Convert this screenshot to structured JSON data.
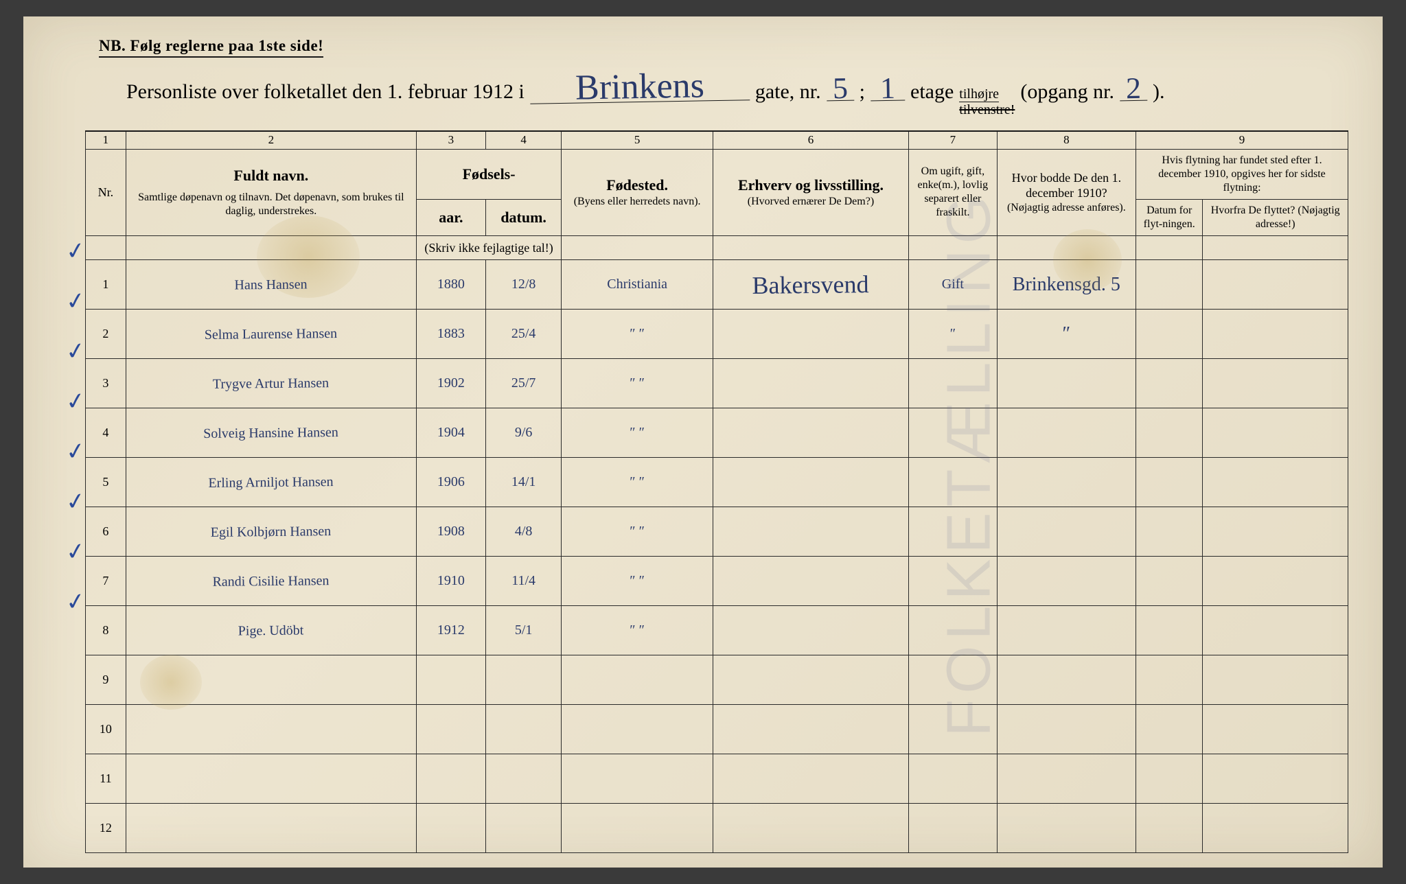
{
  "header": {
    "nb": "NB.  Følg reglerne paa 1ste side!",
    "title_prefix": "Personliste over folketallet den 1. februar 1912 i",
    "street": "Brinkens",
    "gate_label": "gate, nr.",
    "gate_nr": "5",
    "semicolon": ";",
    "etage_nr": "1",
    "etage_label": "etage",
    "tilhojre": "tilhøjre",
    "tilvenstre_struck": "tilvenstre!",
    "opgang_label": "(opgang nr.",
    "opgang_nr": "2",
    "close": ")."
  },
  "columns": {
    "c1": "1",
    "c2": "2",
    "c3": "3",
    "c4": "4",
    "c5": "5",
    "c6": "6",
    "c7": "7",
    "c8": "8",
    "c9": "9",
    "nr": "Nr.",
    "navn_bold": "Fuldt navn.",
    "navn_sub": "Samtlige døpenavn og tilnavn. Det døpenavn, som brukes til daglig, understrekes.",
    "fodsels": "Fødsels-",
    "aar": "aar.",
    "datum": "datum.",
    "skriv": "(Skriv ikke fejlagtige tal!)",
    "fodested": "Fødested.",
    "fodested_sub": "(Byens eller herredets navn).",
    "erhverv": "Erhverv og livsstilling.",
    "erhverv_sub": "(Hvorved ernærer De Dem?)",
    "omugift": "Om ugift, gift, enke(m.), lovlig separert eller fraskilt.",
    "hvorbodde": "Hvor bodde De den 1. december 1910?",
    "hvorbodde_sub": "(Nøjagtig adresse anføres).",
    "flytning": "Hvis flytning har fundet sted efter 1. december 1910, opgives her for sidste flytning:",
    "flyt_datum": "Datum for flyt-ningen.",
    "flyt_hvorfra": "Hvorfra De flyttet? (Nøjagtig adresse!)"
  },
  "rows": [
    {
      "nr": "1",
      "navn": "Hans Hansen",
      "aar": "1880",
      "datum": "12/8",
      "fodested": "Christiania",
      "erhverv": "Bakersvend",
      "status": "Gift",
      "bodde": "Brinkensgd. 5"
    },
    {
      "nr": "2",
      "navn": "Selma Laurense Hansen",
      "aar": "1883",
      "datum": "25/4",
      "fodested": "″   ″",
      "erhverv": "",
      "status": "″",
      "bodde": "″"
    },
    {
      "nr": "3",
      "navn": "Trygve Artur Hansen",
      "aar": "1902",
      "datum": "25/7",
      "fodested": "″   ″",
      "erhverv": "",
      "status": "",
      "bodde": ""
    },
    {
      "nr": "4",
      "navn": "Solveig Hansine Hansen",
      "aar": "1904",
      "datum": "9/6",
      "fodested": "″   ″",
      "erhverv": "",
      "status": "",
      "bodde": ""
    },
    {
      "nr": "5",
      "navn": "Erling Arniljot Hansen",
      "aar": "1906",
      "datum": "14/1",
      "fodested": "″   ″",
      "erhverv": "",
      "status": "",
      "bodde": ""
    },
    {
      "nr": "6",
      "navn": "Egil Kolbjørn Hansen",
      "aar": "1908",
      "datum": "4/8",
      "fodested": "″   ″",
      "erhverv": "",
      "status": "",
      "bodde": ""
    },
    {
      "nr": "7",
      "navn": "Randi Cisilie Hansen",
      "aar": "1910",
      "datum": "11/4",
      "fodested": "″   ″",
      "erhverv": "",
      "status": "",
      "bodde": ""
    },
    {
      "nr": "8",
      "navn": "Pige.   Udöbt",
      "aar": "1912",
      "datum": "5/1",
      "fodested": "″   ″",
      "erhverv": "",
      "status": "",
      "bodde": ""
    },
    {
      "nr": "9",
      "navn": "",
      "aar": "",
      "datum": "",
      "fodested": "",
      "erhverv": "",
      "status": "",
      "bodde": ""
    },
    {
      "nr": "10",
      "navn": "",
      "aar": "",
      "datum": "",
      "fodested": "",
      "erhverv": "",
      "status": "",
      "bodde": ""
    },
    {
      "nr": "11",
      "navn": "",
      "aar": "",
      "datum": "",
      "fodested": "",
      "erhverv": "",
      "status": "",
      "bodde": ""
    },
    {
      "nr": "12",
      "navn": "",
      "aar": "",
      "datum": "",
      "fodested": "",
      "erhverv": "",
      "status": "",
      "bodde": ""
    }
  ],
  "col_widths_pct": {
    "nr": 3.2,
    "navn": 23,
    "aar": 5.5,
    "datum": 6,
    "fodested": 12,
    "erhverv": 15.5,
    "status": 7,
    "bodde": 11,
    "flyt_datum": 5.3,
    "flyt_hvorfra": 11.5
  },
  "colors": {
    "paper": "#e8dfc8",
    "ink_print": "#1a1a1a",
    "ink_hand": "#2a3a6a",
    "stain": "rgba(190,160,80,0.35)"
  },
  "typography": {
    "print_font": "Times New Roman",
    "hand_font": "Brush Script MT",
    "title_size_pt": 22,
    "header_size_pt": 14,
    "handwriting_size_pt": 28
  }
}
